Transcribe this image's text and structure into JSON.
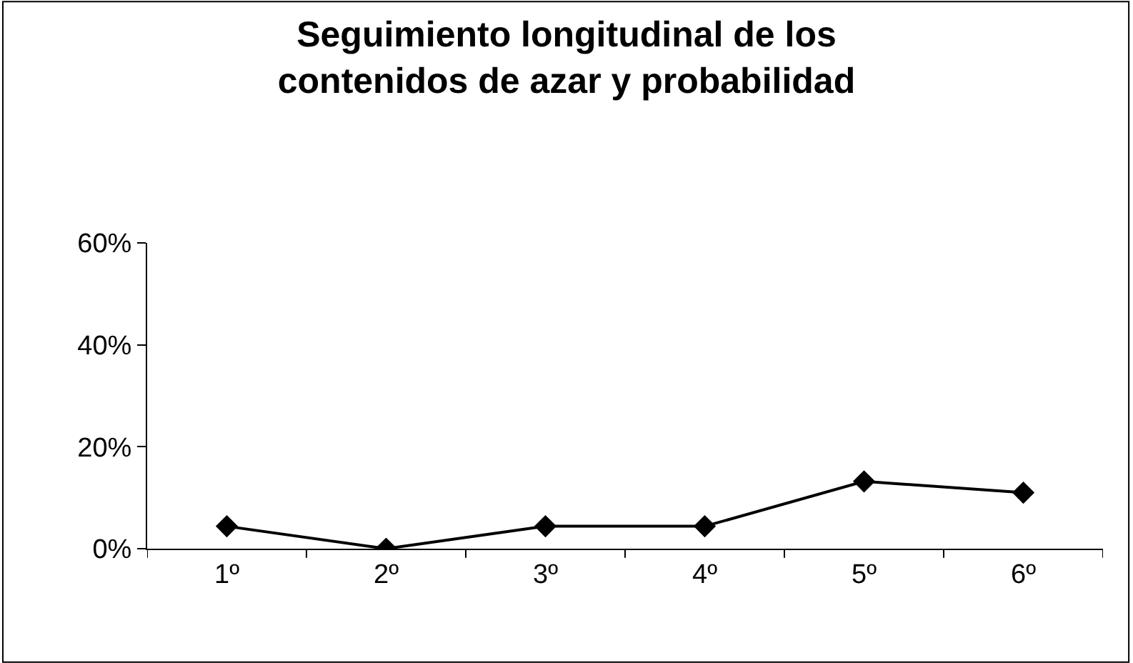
{
  "chart_data": {
    "type": "line",
    "title": "Seguimiento longitudinal de los\ncontenidos de azar y probabilidad",
    "categories": [
      "1º",
      "2º",
      "3º",
      "4º",
      "5º",
      "6º"
    ],
    "series": [
      {
        "color": "#000000",
        "values": [
          0.044,
          0,
          0.044,
          0.044,
          0.132,
          0.11
        ]
      }
    ],
    "ylim": [
      0,
      0.6
    ],
    "yticks": [
      {
        "value": 0,
        "label": "0%"
      },
      {
        "value": 0.2,
        "label": "20%"
      },
      {
        "value": 0.4,
        "label": "40%"
      },
      {
        "value": 0.6,
        "label": "60%"
      }
    ],
    "marker": "diamond",
    "line_style": "solid"
  }
}
